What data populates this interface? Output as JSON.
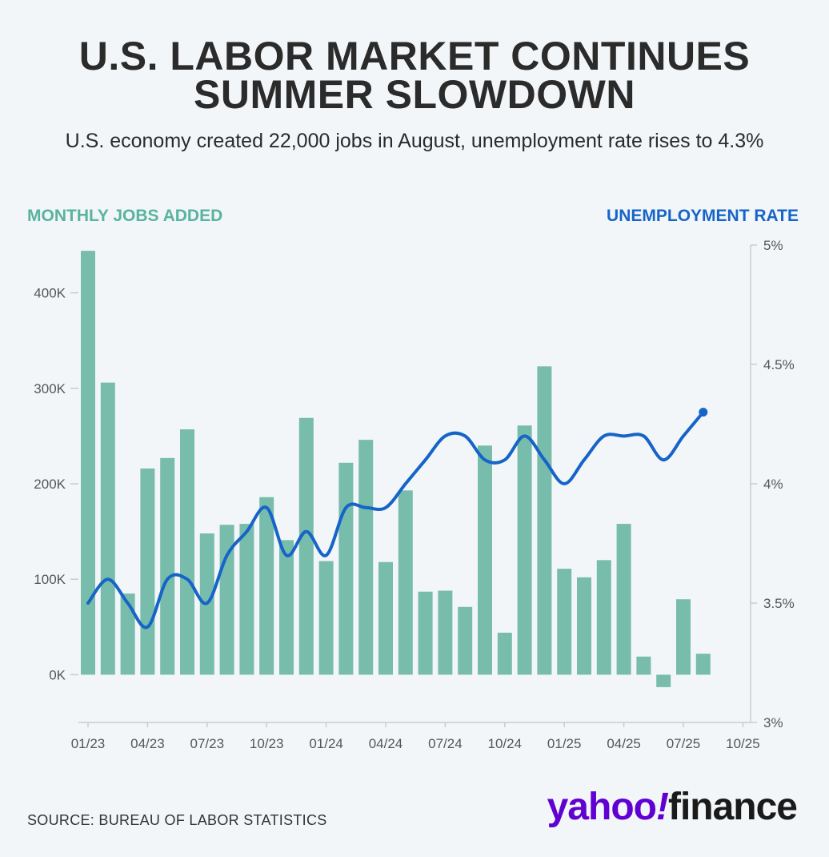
{
  "title_line1": "U.S. LABOR MARKET CONTINUES",
  "title_line2": "SUMMER SLOWDOWN",
  "subtitle": "U.S. economy created 22,000 jobs in August, unemployment rate rises to 4.3%",
  "legend_left": "MONTHLY JOBS ADDED",
  "legend_right": "UNEMPLOYMENT RATE",
  "source": "SOURCE: BUREAU OF LABOR STATISTICS",
  "logo": {
    "part1": "yahoo",
    "part2": "!",
    "part3": "finance"
  },
  "colors": {
    "bars": "#78bcac",
    "line": "#1664c8",
    "legend_left": "#58b39f",
    "legend_right": "#1664c8"
  },
  "chart_data": {
    "type": "bar",
    "x_tick_labels": [
      "01/23",
      "04/23",
      "07/23",
      "10/23",
      "01/24",
      "04/24",
      "07/24",
      "10/24",
      "01/25",
      "04/25",
      "07/25",
      "10/25"
    ],
    "y_left_ticks": [
      "0K",
      "100K",
      "200K",
      "300K",
      "400K"
    ],
    "y_right_ticks": [
      "3%",
      "3.5%",
      "4%",
      "4.5%",
      "5%"
    ],
    "ylim_left": [
      -50000,
      450000
    ],
    "ylim_right": [
      3,
      5
    ],
    "series": [
      {
        "name": "MONTHLY JOBS ADDED",
        "type": "bar",
        "values": [
          444000,
          306000,
          85000,
          216000,
          227000,
          257000,
          148000,
          157000,
          158000,
          186000,
          141000,
          269000,
          119000,
          222000,
          246000,
          118000,
          193000,
          87000,
          88000,
          71000,
          240000,
          44000,
          261000,
          323000,
          111000,
          102000,
          120000,
          158000,
          19000,
          -13000,
          79000,
          22000
        ]
      },
      {
        "name": "UNEMPLOYMENT RATE",
        "type": "line",
        "values": [
          3.5,
          3.6,
          3.5,
          3.4,
          3.6,
          3.6,
          3.5,
          3.7,
          3.8,
          3.9,
          3.7,
          3.8,
          3.7,
          3.9,
          3.9,
          3.9,
          4.0,
          4.1,
          4.2,
          4.2,
          4.1,
          4.1,
          4.2,
          4.1,
          4.0,
          4.1,
          4.2,
          4.2,
          4.2,
          4.1,
          4.2,
          4.3
        ]
      }
    ]
  }
}
